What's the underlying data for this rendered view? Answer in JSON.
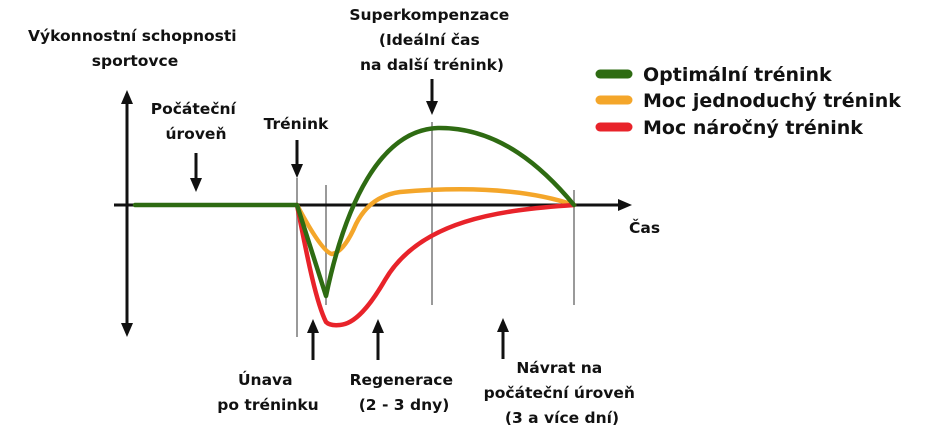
{
  "y_axis_label": [
    "Výkonnostní schopnosti",
    "sportovce"
  ],
  "x_axis_label": "Čas",
  "annotations": {
    "initial_level": [
      "Počáteční",
      "úroveň"
    ],
    "training": "Trénink",
    "supercompensation": [
      "Superkompenzace",
      "(Ideální čas",
      "na další trénink)"
    ],
    "fatigue": [
      "Únava",
      "po tréninku"
    ],
    "regeneration": [
      "Regenerace",
      "(2 - 3 dny)"
    ],
    "return": [
      "Návrat na",
      "počáteční úroveň",
      "(3 a více dní)"
    ]
  },
  "legend": [
    {
      "label": "Optimální trénink",
      "color": "#2e6b12"
    },
    {
      "label": "Moc jednoduchý trénink",
      "color": "#f4a62a"
    },
    {
      "label": "Moc náročný trénink",
      "color": "#e8232a"
    }
  ],
  "colors": {
    "optimal": "#2e6b12",
    "easy": "#f4a62a",
    "hard": "#e8232a",
    "axis": "#111111",
    "guide": "#9a9a9a"
  }
}
